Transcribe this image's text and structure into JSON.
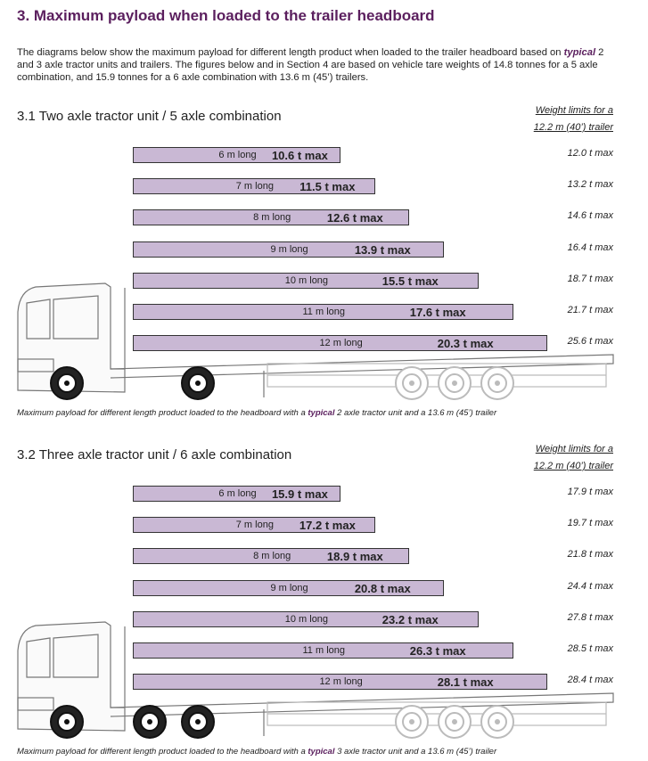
{
  "title": "3. Maximum payload when loaded to the trailer headboard",
  "intro": {
    "before": "The diagrams below show the maximum payload for different length product when loaded to the trailer headboard based on ",
    "emphasis": "typical",
    "after": " 2 and 3 axle tractor units and trailers.  The figures below and in Section 4 are based on vehicle tare weights of 14.8 tonnes for a 5 axle combination, and 15.9 tonnes for a 6 axle combination with 13.6 m (45’) trailers."
  },
  "sections": [
    {
      "heading": "3.1 Two axle tractor unit / 5 axle combination",
      "weight_header": [
        "Weight limits for a",
        "12.2 m (40’) trailer"
      ],
      "rows": [
        {
          "length": "6 m long",
          "max": "10.6 t max",
          "limit": "12.0 t max"
        },
        {
          "length": "7 m long",
          "max": "11.5 t max",
          "limit": "13.2 t max"
        },
        {
          "length": "8 m long",
          "max": "12.6 t max",
          "limit": "14.6 t max"
        },
        {
          "length": "9 m long",
          "max": "13.9 t max",
          "limit": "16.4 t max"
        },
        {
          "length": "10 m long",
          "max": "15.5 t max",
          "limit": "18.7 t max"
        },
        {
          "length": "11 m long",
          "max": "17.6 t max",
          "limit": "21.7 t max"
        },
        {
          "length": "12 m long",
          "max": "20.3 t max",
          "limit": "25.6 t max"
        }
      ],
      "caption": {
        "before": "Maximum payload for different length product loaded to the headboard with a ",
        "emphasis": "typical",
        "after": " 2 axle tractor unit and a 13.6 m (45’) trailer"
      }
    },
    {
      "heading": "3.2  Three axle tractor unit / 6 axle combination",
      "weight_header": [
        "Weight limits for a",
        "12.2 m (40’) trailer"
      ],
      "rows": [
        {
          "length": "6 m long",
          "max": "15.9 t max",
          "limit": "17.9 t max"
        },
        {
          "length": "7 m long",
          "max": "17.2 t max",
          "limit": "19.7 t max"
        },
        {
          "length": "8 m long",
          "max": "18.9 t max",
          "limit": "21.8 t max"
        },
        {
          "length": "9 m long",
          "max": "20.8 t max",
          "limit": "24.4 t max"
        },
        {
          "length": "10 m long",
          "max": "23.2 t max",
          "limit": "27.8 t max"
        },
        {
          "length": "11 m long",
          "max": "26.3 t max",
          "limit": "28.5 t max"
        },
        {
          "length": "12 m long",
          "max": "28.1 t max",
          "limit": "28.4 t max"
        }
      ],
      "caption": {
        "before": "Maximum payload for different length product loaded to the headboard with a ",
        "emphasis": "typical",
        "after": " 3 axle tractor unit and a 13.6 m (45’) trailer"
      }
    }
  ]
}
